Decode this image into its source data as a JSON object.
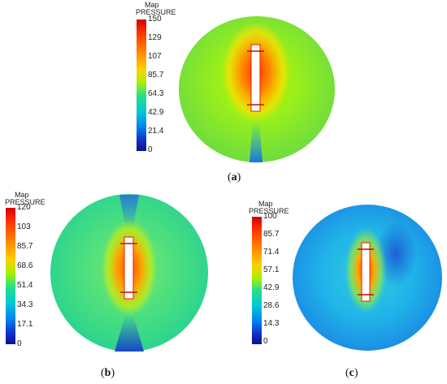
{
  "panels": [
    {
      "id": "a",
      "caption_open": "(",
      "caption_letter": "a",
      "caption_close": ")",
      "legend": {
        "line1": "Map",
        "line2": "PRESSURE",
        "ticks": [
          "150",
          "129",
          "107",
          "85.7",
          "64.3",
          "42.9",
          "21.4",
          "0"
        ]
      },
      "colors": {
        "rim": "#74e040",
        "field": "#8ef020",
        "hot": "#ff4c00",
        "mid": "#ffc800",
        "cool": "#1aa3e8"
      }
    },
    {
      "id": "b",
      "caption_open": "(",
      "caption_letter": "b",
      "caption_close": ")",
      "legend": {
        "line1": "Map",
        "line2": "PRESSURE",
        "ticks": [
          "120",
          "103",
          "85.7",
          "68.6",
          "51.4",
          "34.3",
          "17.1",
          "0"
        ]
      },
      "colors": {
        "rim": "#2fd68a",
        "field": "#5fe27a",
        "hot": "#ff5a00",
        "mid": "#ffd000",
        "cool": "#1a66e0"
      }
    },
    {
      "id": "c",
      "caption_open": "(",
      "caption_letter": "c",
      "caption_close": ")",
      "legend": {
        "line1": "Map",
        "line2": "PRESSURE",
        "ticks": [
          "100",
          "85.7",
          "71.4",
          "57.1",
          "42.9",
          "28.6",
          "14.3",
          "0"
        ]
      },
      "colors": {
        "rim": "#1fa8e8",
        "field": "#28c4e0",
        "hot": "#ff3a00",
        "mid": "#ffd400",
        "cool": "#1a5ed8"
      }
    }
  ]
}
